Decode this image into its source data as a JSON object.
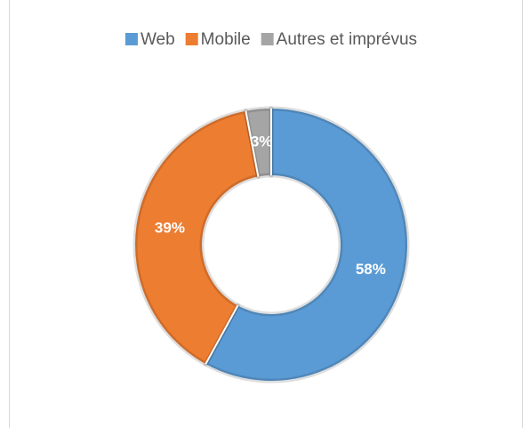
{
  "chart_data": {
    "type": "donut",
    "categories": [
      "Web",
      "Mobile",
      "Autres et imprévus"
    ],
    "values": [
      58,
      39,
      3
    ],
    "value_labels": [
      "58%",
      "39%",
      "3%"
    ],
    "colors": [
      "#5b9bd5",
      "#ed7d31",
      "#a5a5a5"
    ],
    "legend": "top"
  }
}
